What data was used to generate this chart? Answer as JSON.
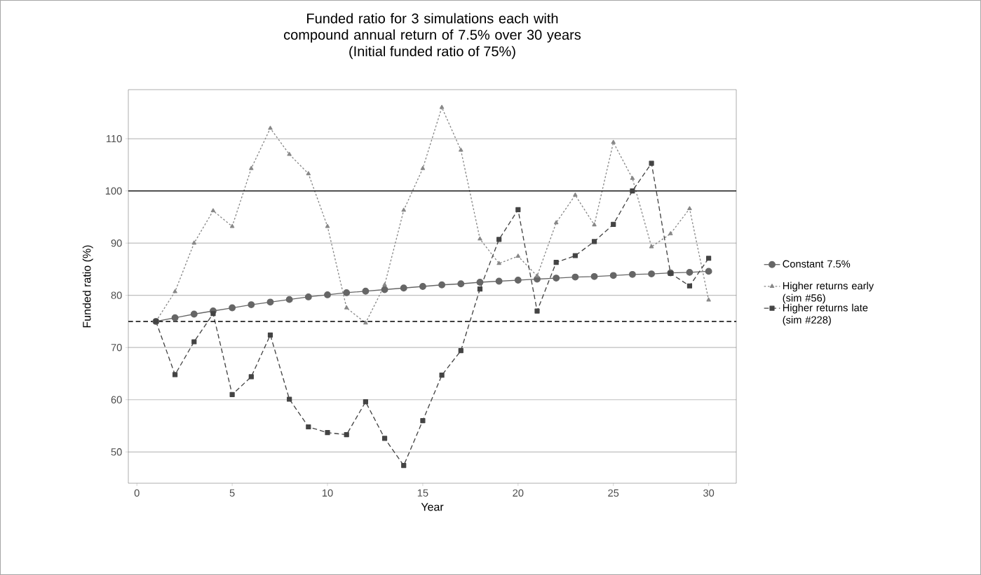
{
  "chart_data": {
    "type": "line",
    "title": "Funded ratio for 3 simulations each with compound annual return of 7.5% over 30 years",
    "subtitle": "(Initial funded ratio of 75%)",
    "xlabel": "Year",
    "ylabel": "Funded ratio (%)",
    "x": [
      1,
      2,
      3,
      4,
      5,
      6,
      7,
      8,
      9,
      10,
      11,
      12,
      13,
      14,
      15,
      16,
      17,
      18,
      19,
      20,
      21,
      22,
      23,
      24,
      25,
      26,
      27,
      28,
      29,
      30
    ],
    "series": [
      {
        "name": "Constant 7.5%",
        "color": "#666666",
        "marker": "circle",
        "line_style": "solid",
        "values": [
          75,
          75.7,
          76.4,
          77.0,
          77.6,
          78.2,
          78.7,
          79.2,
          79.7,
          80.1,
          80.5,
          80.8,
          81.1,
          81.4,
          81.7,
          82.0,
          82.2,
          82.5,
          82.7,
          82.9,
          83.1,
          83.3,
          83.5,
          83.6,
          83.8,
          84.0,
          84.1,
          84.3,
          84.4,
          84.6
        ]
      },
      {
        "name": "Higher returns early (sim #56)",
        "color": "#888888",
        "marker": "triangle",
        "line_style": "dotted",
        "values": [
          75,
          80.7,
          90,
          96.2,
          93.2,
          104.3,
          112,
          107,
          103.3,
          93.2,
          77.6,
          74.7,
          82,
          96.3,
          104.3,
          116,
          107.8,
          90.8,
          86.1,
          87.5,
          83.7,
          93.9,
          99.2,
          93.5,
          109.3,
          102.4,
          89.3,
          91.8,
          96.6,
          79.1
        ]
      },
      {
        "name": "Higher returns late (sim #228)",
        "color": "#444444",
        "marker": "square",
        "line_style": "dashed",
        "values": [
          75,
          64.8,
          71.1,
          76.5,
          61,
          64.4,
          72.4,
          60.1,
          54.8,
          53.7,
          53.3,
          59.6,
          52.6,
          47.4,
          56,
          64.7,
          69.4,
          81.2,
          90.7,
          96.4,
          77,
          86.3,
          87.6,
          90.3,
          93.6,
          100,
          105.3,
          84.2,
          81.8,
          87.1
        ]
      }
    ],
    "ref_lines": [
      {
        "axis": "y",
        "value": 100,
        "color": "#000000",
        "line_style": "solid"
      },
      {
        "axis": "y",
        "value": 75,
        "color": "#000000",
        "line_style": "dashed"
      }
    ],
    "xlim": [
      -0.45,
      31.45
    ],
    "ylim": [
      44,
      119.4
    ],
    "xticks": [
      0,
      5,
      10,
      15,
      20,
      25,
      30
    ],
    "yticks": [
      50,
      60,
      70,
      80,
      90,
      100,
      110
    ],
    "grid": "y",
    "legend": "right"
  }
}
